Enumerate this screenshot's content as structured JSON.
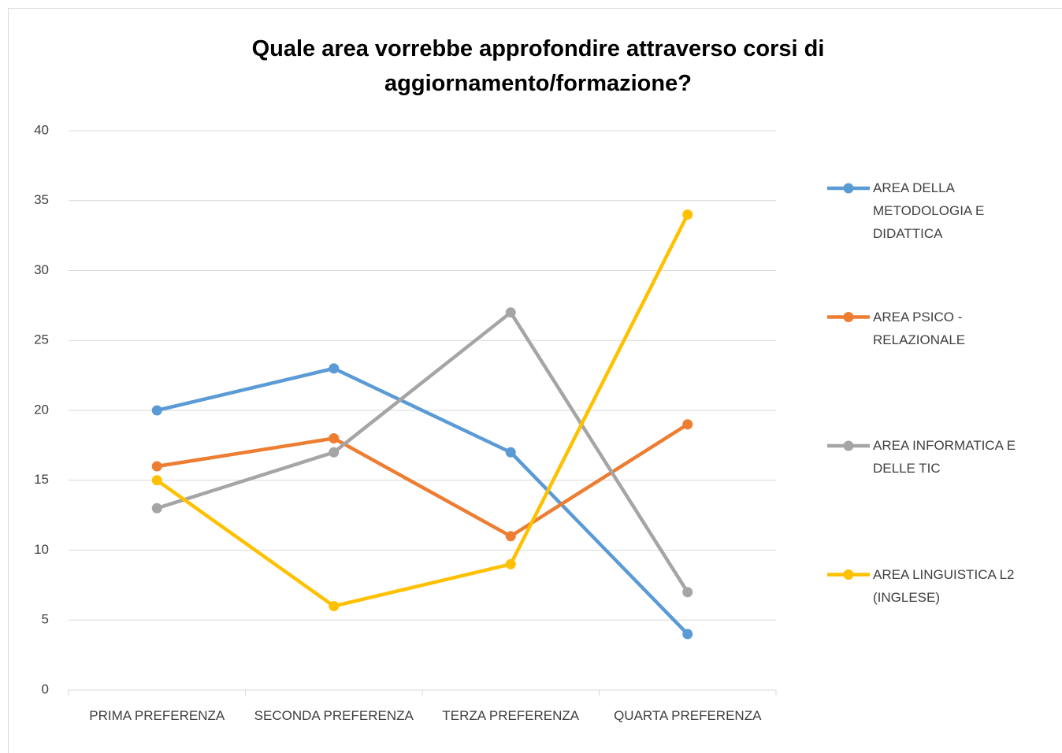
{
  "chart_data": {
    "type": "line",
    "title": "Quale area vorrebbe approfondire attraverso corsi di aggiornamento/formazione?",
    "categories": [
      "PRIMA PREFERENZA",
      "SECONDA PREFERENZA",
      "TERZA PREFERENZA",
      "QUARTA PREFERENZA"
    ],
    "series": [
      {
        "name": "AREA DELLA METODOLOGIA E DIDATTICA",
        "color": "#5b9bd5",
        "values": [
          20,
          23,
          17,
          4
        ]
      },
      {
        "name": "AREA PSICO - RELAZIONALE",
        "color": "#ed7d31",
        "values": [
          16,
          18,
          11,
          19
        ]
      },
      {
        "name": "AREA INFORMATICA E DELLE TIC",
        "color": "#a5a5a5",
        "values": [
          13,
          17,
          27,
          7
        ]
      },
      {
        "name": "AREA LINGUISTICA L2 (INGLESE)",
        "color": "#ffc000",
        "values": [
          15,
          6,
          9,
          34
        ]
      }
    ],
    "ylim": [
      0,
      40
    ],
    "yticks": [
      0,
      5,
      10,
      15,
      20,
      25,
      30,
      35,
      40
    ],
    "grid": true,
    "legend": "right"
  }
}
